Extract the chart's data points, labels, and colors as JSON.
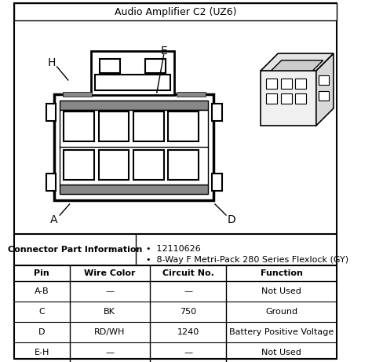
{
  "title": "Audio Amplifier C2 (UZ6)",
  "connector_info_label": "Connector Part Information",
  "connector_bullets": [
    "12110626",
    "8-Way F Metri-Pack 280 Series Flexlock (GY)"
  ],
  "table_headers": [
    "Pin",
    "Wire Color",
    "Circuit No.",
    "Function"
  ],
  "table_rows": [
    [
      "A-B",
      "—",
      "—",
      "Not Used"
    ],
    [
      "C",
      "BK",
      "750",
      "Ground"
    ],
    [
      "D",
      "RD/WH",
      "1240",
      "Battery Positive Voltage"
    ],
    [
      "E-H",
      "—",
      "—",
      "Not Used"
    ]
  ]
}
